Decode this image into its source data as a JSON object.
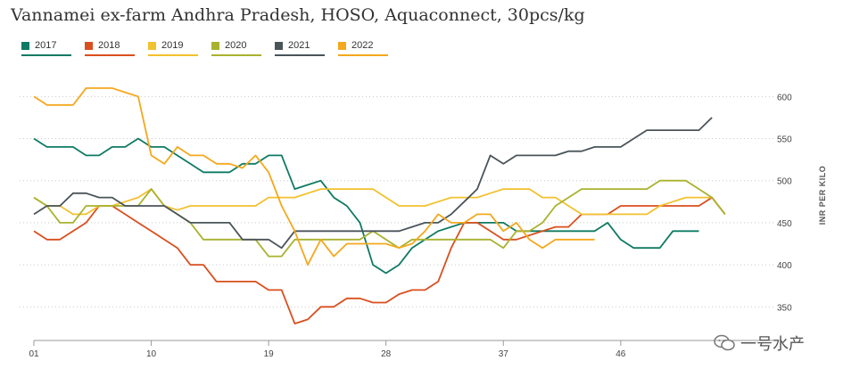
{
  "chart_data": {
    "type": "line",
    "title": "Vannamei ex-farm Andhra Pradesh, HOSO, Aquaconnect, 30pcs/kg",
    "xlabel": "",
    "ylabel": "INR PER KILO",
    "xlim": [
      1,
      56
    ],
    "ylim": [
      310,
      630
    ],
    "x_ticks": [
      {
        "value": 1,
        "label": "01"
      },
      {
        "value": 10,
        "label": "10"
      },
      {
        "value": 19,
        "label": "19"
      },
      {
        "value": 28,
        "label": "28"
      },
      {
        "value": 37,
        "label": "37"
      },
      {
        "value": 46,
        "label": "46"
      }
    ],
    "y_ticks": [
      350,
      400,
      450,
      500,
      550,
      600
    ],
    "grid": "horizontal dotted",
    "legend_position": "top-left",
    "series": [
      {
        "name": "2017",
        "color": "#0f7a63",
        "x": [
          1,
          2,
          3,
          4,
          5,
          6,
          7,
          8,
          9,
          10,
          11,
          12,
          13,
          14,
          15,
          16,
          17,
          18,
          19,
          20,
          21,
          22,
          23,
          24,
          25,
          26,
          27,
          28,
          29,
          30,
          31,
          32,
          33,
          34,
          35,
          36,
          37,
          38,
          39,
          40,
          41,
          42,
          43,
          44,
          45,
          46,
          47,
          48,
          49,
          50,
          51,
          52
        ],
        "values": [
          550,
          540,
          540,
          540,
          530,
          530,
          540,
          540,
          550,
          540,
          540,
          530,
          520,
          510,
          510,
          510,
          520,
          520,
          530,
          530,
          490,
          495,
          500,
          480,
          470,
          450,
          400,
          390,
          400,
          420,
          430,
          440,
          445,
          450,
          450,
          450,
          450,
          440,
          440,
          440,
          440,
          440,
          440,
          440,
          450,
          430,
          420,
          420,
          420,
          440,
          440,
          440
        ]
      },
      {
        "name": "2018",
        "color": "#d94f1e",
        "x": [
          1,
          2,
          3,
          4,
          5,
          6,
          7,
          8,
          9,
          10,
          11,
          12,
          13,
          14,
          15,
          16,
          17,
          18,
          19,
          20,
          21,
          22,
          23,
          24,
          25,
          26,
          27,
          28,
          29,
          30,
          31,
          32,
          33,
          34,
          35,
          36,
          37,
          38,
          39,
          40,
          41,
          42,
          43,
          44,
          45,
          46,
          47,
          48,
          49,
          50,
          51,
          52,
          53,
          54
        ],
        "values": [
          440,
          430,
          430,
          440,
          450,
          470,
          470,
          460,
          450,
          440,
          430,
          420,
          400,
          400,
          380,
          380,
          380,
          380,
          370,
          370,
          330,
          335,
          350,
          350,
          360,
          360,
          355,
          355,
          365,
          370,
          370,
          380,
          420,
          450,
          450,
          440,
          430,
          430,
          435,
          440,
          445,
          445,
          460,
          460,
          460,
          470,
          470,
          470,
          470,
          470,
          470,
          470,
          480,
          460
        ]
      },
      {
        "name": "2019",
        "color": "#f2c12e",
        "x": [
          1,
          2,
          3,
          4,
          5,
          6,
          7,
          8,
          9,
          10,
          11,
          12,
          13,
          14,
          15,
          16,
          17,
          18,
          19,
          20,
          21,
          22,
          23,
          24,
          25,
          26,
          27,
          28,
          29,
          30,
          31,
          32,
          33,
          34,
          35,
          36,
          37,
          38,
          39,
          40,
          41,
          42,
          43,
          44,
          45,
          46,
          47,
          48,
          49,
          50,
          51,
          52,
          53
        ],
        "values": [
          480,
          470,
          470,
          460,
          460,
          470,
          470,
          475,
          480,
          490,
          470,
          465,
          470,
          470,
          470,
          470,
          470,
          470,
          480,
          480,
          480,
          485,
          490,
          490,
          490,
          490,
          490,
          480,
          470,
          470,
          470,
          475,
          480,
          480,
          480,
          485,
          490,
          490,
          490,
          480,
          480,
          470,
          460,
          460,
          460,
          460,
          460,
          460,
          470,
          475,
          480,
          480,
          480
        ]
      },
      {
        "name": "2020",
        "color": "#a9b22e",
        "x": [
          1,
          2,
          3,
          4,
          5,
          6,
          7,
          8,
          9,
          10,
          11,
          12,
          13,
          14,
          15,
          16,
          17,
          18,
          19,
          20,
          21,
          22,
          23,
          24,
          25,
          26,
          27,
          28,
          29,
          30,
          31,
          32,
          33,
          34,
          35,
          36,
          37,
          38,
          39,
          40,
          41,
          42,
          43,
          44,
          45,
          46,
          47,
          48,
          49,
          50,
          51,
          52,
          53,
          54
        ],
        "values": [
          480,
          470,
          450,
          450,
          470,
          470,
          470,
          470,
          470,
          490,
          470,
          460,
          450,
          430,
          430,
          430,
          430,
          430,
          410,
          410,
          430,
          430,
          430,
          430,
          430,
          430,
          440,
          430,
          420,
          430,
          430,
          430,
          430,
          430,
          430,
          430,
          420,
          440,
          440,
          450,
          470,
          480,
          490,
          490,
          490,
          490,
          490,
          490,
          500,
          500,
          500,
          490,
          480,
          460
        ]
      },
      {
        "name": "2021",
        "color": "#4a5459",
        "x": [
          1,
          2,
          3,
          4,
          5,
          6,
          7,
          8,
          9,
          10,
          11,
          12,
          13,
          14,
          15,
          16,
          17,
          18,
          19,
          20,
          21,
          22,
          23,
          24,
          25,
          26,
          27,
          28,
          29,
          30,
          31,
          32,
          33,
          34,
          35,
          36,
          37,
          38,
          39,
          40,
          41,
          42,
          43,
          44,
          45,
          46,
          47,
          48,
          49,
          50,
          51,
          52,
          53
        ],
        "values": [
          460,
          470,
          470,
          485,
          485,
          480,
          480,
          470,
          470,
          470,
          470,
          460,
          450,
          450,
          450,
          450,
          430,
          430,
          430,
          420,
          440,
          440,
          440,
          440,
          440,
          440,
          440,
          440,
          440,
          445,
          450,
          450,
          460,
          475,
          490,
          530,
          520,
          530,
          530,
          530,
          530,
          535,
          535,
          540,
          540,
          540,
          550,
          560,
          560,
          560,
          560,
          560,
          575
        ]
      },
      {
        "name": "2022",
        "color": "#f4a81d",
        "x": [
          1,
          2,
          3,
          4,
          5,
          6,
          7,
          8,
          9,
          10,
          11,
          12,
          13,
          14,
          15,
          16,
          17,
          18,
          19,
          20,
          21,
          22,
          23,
          24,
          25,
          26,
          27,
          28,
          29,
          30,
          31,
          32,
          33,
          34,
          35,
          36,
          37,
          38,
          39,
          40,
          41,
          42,
          43,
          44
        ],
        "values": [
          600,
          590,
          590,
          590,
          610,
          610,
          610,
          605,
          600,
          530,
          520,
          540,
          530,
          530,
          520,
          520,
          515,
          530,
          510,
          470,
          440,
          400,
          430,
          410,
          425,
          425,
          425,
          425,
          420,
          425,
          440,
          460,
          450,
          450,
          460,
          460,
          440,
          450,
          430,
          420,
          430,
          430,
          430,
          430
        ]
      }
    ]
  },
  "watermark": {
    "text": "一号水产"
  }
}
